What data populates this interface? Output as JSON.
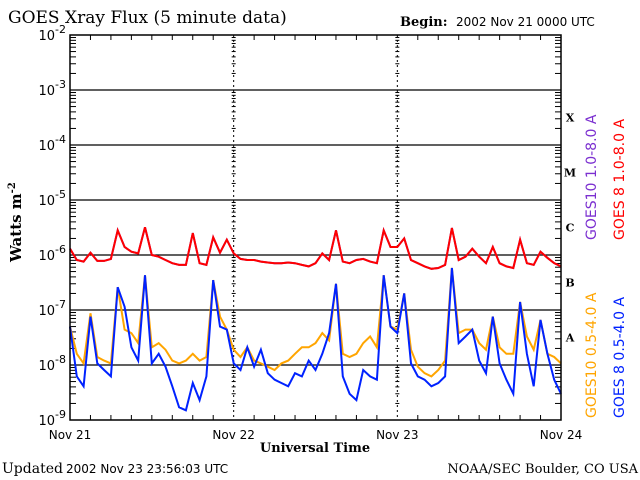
{
  "chart_data": {
    "type": "line",
    "title": "GOES Xray Flux (5 minute data)",
    "begin_label": "Begin:",
    "begin_value": "2002 Nov 21 0000 UTC",
    "xlabel": "Universal Time",
    "ylabel": "Watts m",
    "ylabel_exponent": "-2",
    "x_tick_labels": [
      "Nov 21",
      "Nov 22",
      "Nov 23",
      "Nov 24"
    ],
    "x_unit": "hours since 2002 Nov 21 0000 UTC",
    "x": [
      0,
      1,
      2,
      3,
      4,
      5,
      6,
      7,
      8,
      9,
      10,
      11,
      12,
      13,
      14,
      15,
      16,
      17,
      18,
      19,
      20,
      21,
      22,
      23,
      24,
      25,
      26,
      27,
      28,
      29,
      30,
      31,
      32,
      33,
      34,
      35,
      36,
      37,
      38,
      39,
      40,
      41,
      42,
      43,
      44,
      45,
      46,
      47,
      48,
      49,
      50,
      51,
      52,
      53,
      54,
      55,
      56,
      57,
      58,
      59,
      60,
      61,
      62,
      63,
      64,
      65,
      66,
      67,
      68,
      69,
      70,
      71,
      72
    ],
    "y_scale": "log",
    "ylim": [
      1e-09,
      0.01
    ],
    "y_tick_labels": [
      {
        "base": "10",
        "exp": "-2"
      },
      {
        "base": "10",
        "exp": "-3"
      },
      {
        "base": "10",
        "exp": "-4"
      },
      {
        "base": "10",
        "exp": "-5"
      },
      {
        "base": "10",
        "exp": "-6"
      },
      {
        "base": "10",
        "exp": "-7"
      },
      {
        "base": "10",
        "exp": "-8"
      },
      {
        "base": "10",
        "exp": "-9"
      }
    ],
    "flare_classes": [
      "X",
      "M",
      "C",
      "B",
      "A"
    ],
    "grid": "horizontal lines at each decade",
    "legend_placement": "right, vertical",
    "series": [
      {
        "name": "GOES10 1.0-8.0 A",
        "color": "#7b2fd0",
        "values": [
          1.3e-06,
          8.1e-07,
          7.6e-07,
          1.1e-06,
          7.8e-07,
          7.8e-07,
          8.5e-07,
          2.8e-06,
          1.4e-06,
          1.15e-06,
          1.07e-06,
          3.2e-06,
          1e-06,
          9.3e-07,
          8.1e-07,
          7.1e-07,
          6.6e-07,
          6.6e-07,
          2.5e-06,
          7.1e-07,
          6.6e-07,
          2.1e-06,
          1.1e-06,
          1.9e-06,
          1.07e-06,
          8.5e-07,
          8.1e-07,
          8.1e-07,
          7.6e-07,
          7.3e-07,
          7.1e-07,
          7.1e-07,
          7.3e-07,
          7.1e-07,
          6.6e-07,
          6.2e-07,
          7.1e-07,
          1.07e-06,
          8.1e-07,
          2.8e-06,
          7.6e-07,
          7.1e-07,
          8.1e-07,
          8.5e-07,
          7.6e-07,
          7.1e-07,
          2.8e-06,
          1.4e-06,
          1.4e-06,
          2e-06,
          8.1e-07,
          7.1e-07,
          6.2e-07,
          5.6e-07,
          5.8e-07,
          6.6e-07,
          3.1e-06,
          8.1e-07,
          9.3e-07,
          1.3e-06,
          9.3e-07,
          7.1e-07,
          1.4e-06,
          7.1e-07,
          6.2e-07,
          5.8e-07,
          1.9e-06,
          7.1e-07,
          6.6e-07,
          1.15e-06,
          8.9e-07,
          7.1e-07,
          6.2e-07
        ]
      },
      {
        "name": "GOES 8 1.0-8.0 A",
        "color": "#ff0000",
        "values": [
          1.3e-06,
          8.1e-07,
          7.6e-07,
          1.1e-06,
          7.8e-07,
          7.8e-07,
          8.5e-07,
          2.8e-06,
          1.4e-06,
          1.15e-06,
          1.07e-06,
          3.2e-06,
          1e-06,
          9.3e-07,
          8.1e-07,
          7.1e-07,
          6.6e-07,
          6.6e-07,
          2.5e-06,
          7.1e-07,
          6.6e-07,
          2.1e-06,
          1.1e-06,
          1.9e-06,
          1.07e-06,
          8.5e-07,
          8.1e-07,
          8.1e-07,
          7.6e-07,
          7.3e-07,
          7.1e-07,
          7.1e-07,
          7.3e-07,
          7.1e-07,
          6.6e-07,
          6.2e-07,
          7.1e-07,
          1.07e-06,
          8.1e-07,
          2.8e-06,
          7.6e-07,
          7.1e-07,
          8.1e-07,
          8.5e-07,
          7.6e-07,
          7.1e-07,
          2.8e-06,
          1.4e-06,
          1.4e-06,
          2e-06,
          8.1e-07,
          7.1e-07,
          6.2e-07,
          5.6e-07,
          5.8e-07,
          6.6e-07,
          3.1e-06,
          8.1e-07,
          9.3e-07,
          1.3e-06,
          9.3e-07,
          7.1e-07,
          1.4e-06,
          7.1e-07,
          6.2e-07,
          5.8e-07,
          1.9e-06,
          7.1e-07,
          6.6e-07,
          1.15e-06,
          8.9e-07,
          7.1e-07,
          6.2e-07
        ]
      },
      {
        "name": "GOES10 0.5-4.0 A",
        "color": "#ffa500",
        "values": [
          5e-08,
          1.6e-08,
          1.07e-08,
          8.7e-08,
          1.4e-08,
          1.2e-08,
          1.07e-08,
          2.6e-07,
          4.4e-08,
          3.8e-08,
          2.5e-08,
          4.3e-07,
          2.1e-08,
          2.5e-08,
          1.9e-08,
          1.2e-08,
          1.07e-08,
          1.2e-08,
          1.6e-08,
          1.2e-08,
          1.4e-08,
          3.5e-07,
          7.6e-08,
          4.4e-08,
          1.9e-08,
          1.4e-08,
          2.1e-08,
          1.2e-08,
          1.07e-08,
          9.3e-09,
          8.1e-09,
          1.07e-08,
          1.2e-08,
          1.6e-08,
          2.1e-08,
          2.1e-08,
          2.5e-08,
          3.8e-08,
          2.8e-08,
          3e-07,
          1.6e-08,
          1.4e-08,
          1.6e-08,
          2.5e-08,
          3.3e-08,
          2.1e-08,
          4.3e-07,
          5e-08,
          4.4e-08,
          2e-07,
          1.9e-08,
          9.3e-09,
          7.1e-09,
          6.2e-09,
          8.1e-09,
          1.2e-08,
          5.8e-07,
          3.8e-08,
          4.4e-08,
          4.4e-08,
          2.5e-08,
          1.9e-08,
          7.6e-08,
          2.1e-08,
          1.6e-08,
          1.6e-08,
          1.4e-07,
          3.3e-08,
          1.9e-08,
          6.6e-08,
          1.6e-08,
          1.4e-08,
          1.07e-08
        ]
      },
      {
        "name": "GOES 8 0.5-4.0 A",
        "color": "#0022ff",
        "values": [
          5e-08,
          6.2e-09,
          4.1e-09,
          7.6e-08,
          1.07e-08,
          8.1e-09,
          6.2e-09,
          2.6e-07,
          1.15e-07,
          2.1e-08,
          1.2e-08,
          4.3e-07,
          1.07e-08,
          1.6e-08,
          9.3e-09,
          4.1e-09,
          1.7e-09,
          1.5e-09,
          4.7e-09,
          2.3e-09,
          6.2e-09,
          3.5e-07,
          5e-08,
          4.4e-08,
          1.07e-08,
          8.1e-09,
          2.1e-08,
          9.3e-09,
          1.9e-08,
          7.1e-09,
          5.4e-09,
          4.7e-09,
          4.1e-09,
          7.1e-09,
          6.2e-09,
          1.2e-08,
          8.1e-09,
          1.6e-08,
          3.8e-08,
          3e-07,
          6.2e-09,
          3e-09,
          2.3e-09,
          8.1e-09,
          6.2e-09,
          5.4e-09,
          4.3e-07,
          5e-08,
          3.8e-08,
          2e-07,
          1.07e-08,
          6.2e-09,
          5.4e-09,
          4.1e-09,
          4.7e-09,
          6.2e-09,
          5.8e-07,
          2.5e-08,
          3.3e-08,
          4.4e-08,
          1.2e-08,
          7.1e-09,
          7.6e-08,
          1.07e-08,
          5.4e-09,
          3e-09,
          1.4e-07,
          1.6e-08,
          4.1e-09,
          6.6e-08,
          1.6e-08,
          5.4e-09,
          3e-09
        ]
      }
    ]
  },
  "footer": {
    "updated_label": "Updated",
    "updated_value": "2002 Nov 23 23:56:03 UTC",
    "credit": "NOAA/SEC Boulder, CO USA"
  }
}
